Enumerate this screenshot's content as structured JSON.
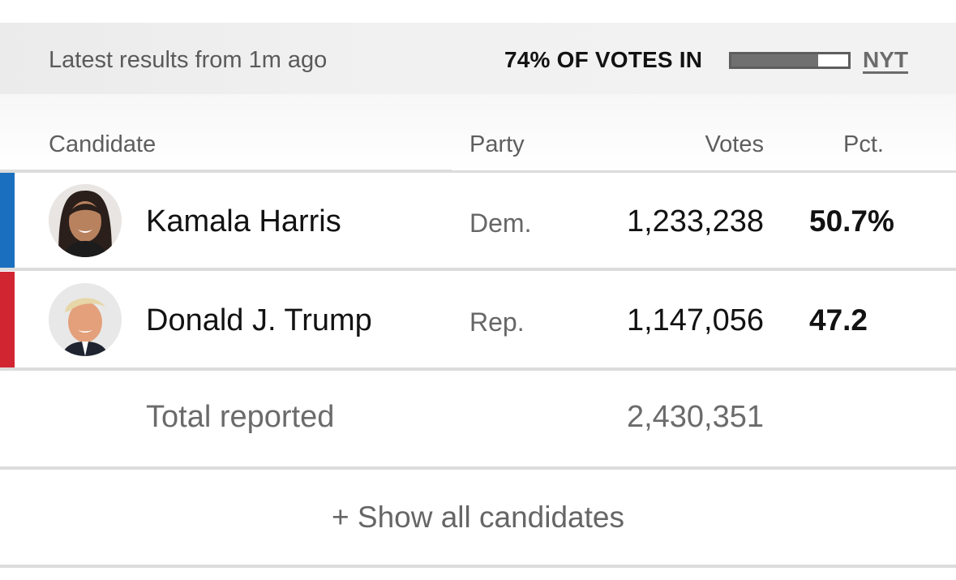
{
  "status": {
    "updated_text": "Latest results from 1m ago",
    "votes_in_label": "74% OF VOTES IN",
    "votes_in_fraction": 0.74,
    "source_link": "NYT"
  },
  "table": {
    "headers": {
      "candidate": "Candidate",
      "party": "Party",
      "votes": "Votes",
      "pct": "Pct."
    },
    "rows": [
      {
        "name": "Kamala Harris",
        "party": "Dem.",
        "votes": "1,233,238",
        "pct": "50.7%",
        "party_color": "#1a6fbf"
      },
      {
        "name": "Donald J. Trump",
        "party": "Rep.",
        "votes": "1,147,056",
        "pct": "47.2",
        "party_color": "#d22532"
      }
    ],
    "total": {
      "label": "Total reported",
      "votes": "2,430,351"
    }
  },
  "show_all": {
    "label": "+ Show all candidates"
  },
  "icons": {
    "avatar_1": "candidate-photo-harris",
    "avatar_2": "candidate-photo-trump"
  }
}
